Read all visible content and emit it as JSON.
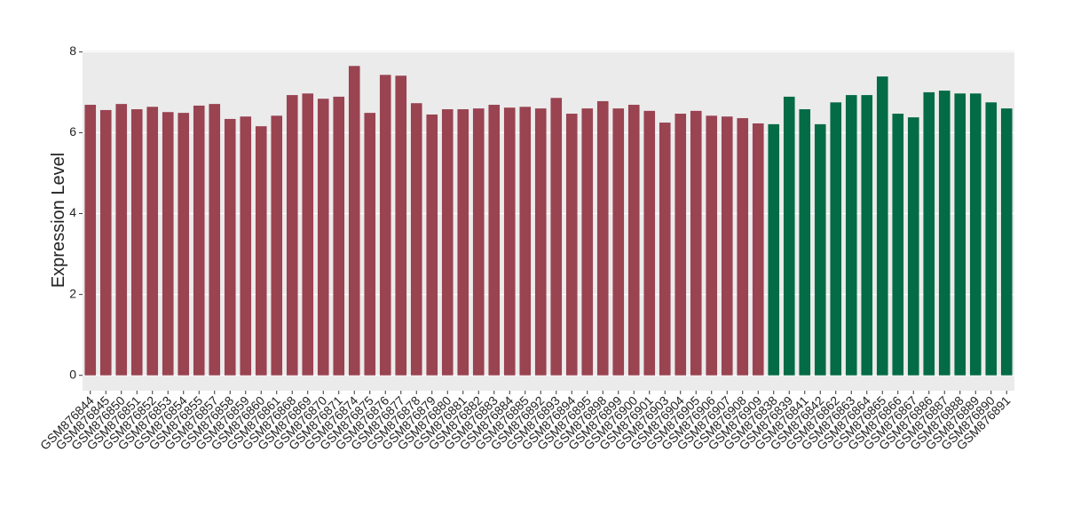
{
  "chart_data": {
    "type": "bar",
    "y_label": "Expression Level",
    "categories": [
      "GSM876844",
      "GSM876845",
      "GSM876850",
      "GSM876851",
      "GSM876852",
      "GSM876853",
      "GSM876854",
      "GSM876855",
      "GSM876857",
      "GSM876858",
      "GSM876859",
      "GSM876860",
      "GSM876861",
      "GSM876868",
      "GSM876869",
      "GSM876870",
      "GSM876871",
      "GSM876874",
      "GSM876875",
      "GSM876876",
      "GSM876877",
      "GSM876878",
      "GSM876879",
      "GSM876880",
      "GSM876881",
      "GSM876882",
      "GSM876883",
      "GSM876884",
      "GSM876885",
      "GSM876892",
      "GSM876893",
      "GSM876894",
      "GSM876895",
      "GSM876898",
      "GSM876899",
      "GSM876900",
      "GSM876901",
      "GSM876903",
      "GSM876904",
      "GSM876905",
      "GSM876906",
      "GSM876907",
      "GSM876908",
      "GSM876909",
      "GSM876838",
      "GSM876839",
      "GSM876841",
      "GSM876842",
      "GSM876862",
      "GSM876863",
      "GSM876864",
      "GSM876865",
      "GSM876866",
      "GSM876867",
      "GSM876886",
      "GSM876887",
      "GSM876888",
      "GSM876889",
      "GSM876890",
      "GSM876891"
    ],
    "values": [
      6.69,
      6.56,
      6.71,
      6.58,
      6.64,
      6.51,
      6.49,
      6.67,
      6.71,
      6.34,
      6.4,
      6.16,
      6.42,
      6.93,
      6.97,
      6.84,
      6.89,
      7.65,
      6.49,
      7.43,
      7.41,
      6.73,
      6.45,
      6.58,
      6.58,
      6.6,
      6.69,
      6.62,
      6.64,
      6.6,
      6.86,
      6.47,
      6.6,
      6.78,
      6.6,
      6.69,
      6.54,
      6.25,
      6.47,
      6.54,
      6.42,
      6.4,
      6.36,
      6.23,
      6.21,
      6.89,
      6.58,
      6.21,
      6.75,
      6.93,
      6.93,
      7.39,
      6.47,
      6.38,
      7.0,
      7.04,
      6.97,
      6.97,
      6.75,
      6.6
    ],
    "colors": [
      "#9a4351",
      "#9a4351",
      "#9a4351",
      "#9a4351",
      "#9a4351",
      "#9a4351",
      "#9a4351",
      "#9a4351",
      "#9a4351",
      "#9a4351",
      "#9a4351",
      "#9a4351",
      "#9a4351",
      "#9a4351",
      "#9a4351",
      "#9a4351",
      "#9a4351",
      "#9a4351",
      "#9a4351",
      "#9a4351",
      "#9a4351",
      "#9a4351",
      "#9a4351",
      "#9a4351",
      "#9a4351",
      "#9a4351",
      "#9a4351",
      "#9a4351",
      "#9a4351",
      "#9a4351",
      "#9a4351",
      "#9a4351",
      "#9a4351",
      "#9a4351",
      "#9a4351",
      "#9a4351",
      "#9a4351",
      "#9a4351",
      "#9a4351",
      "#9a4351",
      "#9a4351",
      "#9a4351",
      "#9a4351",
      "#9a4351",
      "#036b45",
      "#036b45",
      "#036b45",
      "#036b45",
      "#036b45",
      "#036b45",
      "#036b45",
      "#036b45",
      "#036b45",
      "#036b45",
      "#036b45",
      "#036b45",
      "#036b45",
      "#036b45",
      "#036b45",
      "#036b45"
    ],
    "ylim": [
      -0.38,
      8.03
    ],
    "yticks": [
      0,
      2,
      4,
      6,
      8
    ],
    "grid": true
  }
}
